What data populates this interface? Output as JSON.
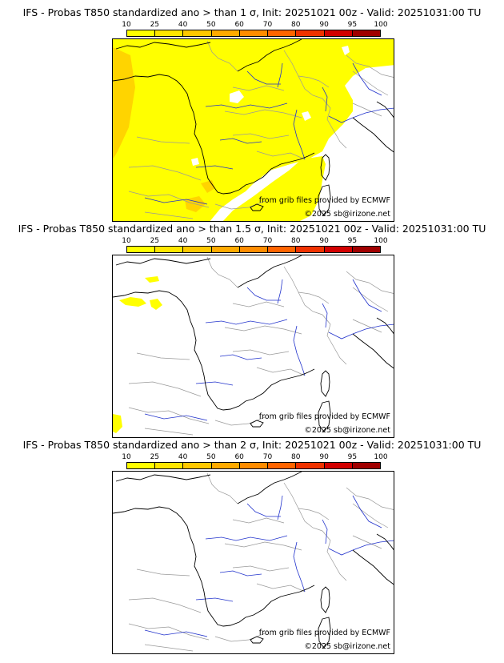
{
  "colorbar": {
    "labels": [
      "10",
      "25",
      "40",
      "50",
      "60",
      "70",
      "80",
      "90",
      "95",
      "100"
    ],
    "colors": [
      "#ffff00",
      "#ffe600",
      "#ffc800",
      "#ffaa00",
      "#ff8c00",
      "#ff6400",
      "#f03200",
      "#d20000",
      "#a00000",
      "#5a0000"
    ]
  },
  "land_color": "#ffffff",
  "coast_color": "#000000",
  "border_color": "#999999",
  "river_color": "#2233cc",
  "credits": {
    "line1": "from grib files provided by ECMWF",
    "line2": "©2025 sb@irizone.net"
  },
  "panels": [
    {
      "title": "IFS - Probas T850  standardized ano > than 1 σ, Init: 20251021 00z - Valid: 20251031:00 TU",
      "coverage": "widespread"
    },
    {
      "title": "IFS - Probas T850  standardized ano > than 1.5 σ, Init: 20251021 00z - Valid: 20251031:00 TU",
      "coverage": "isolated"
    },
    {
      "title": "IFS - Probas T850  standardized ano > than 2 σ, Init: 20251021 00z - Valid: 20251031:00 TU",
      "coverage": "none"
    }
  ]
}
